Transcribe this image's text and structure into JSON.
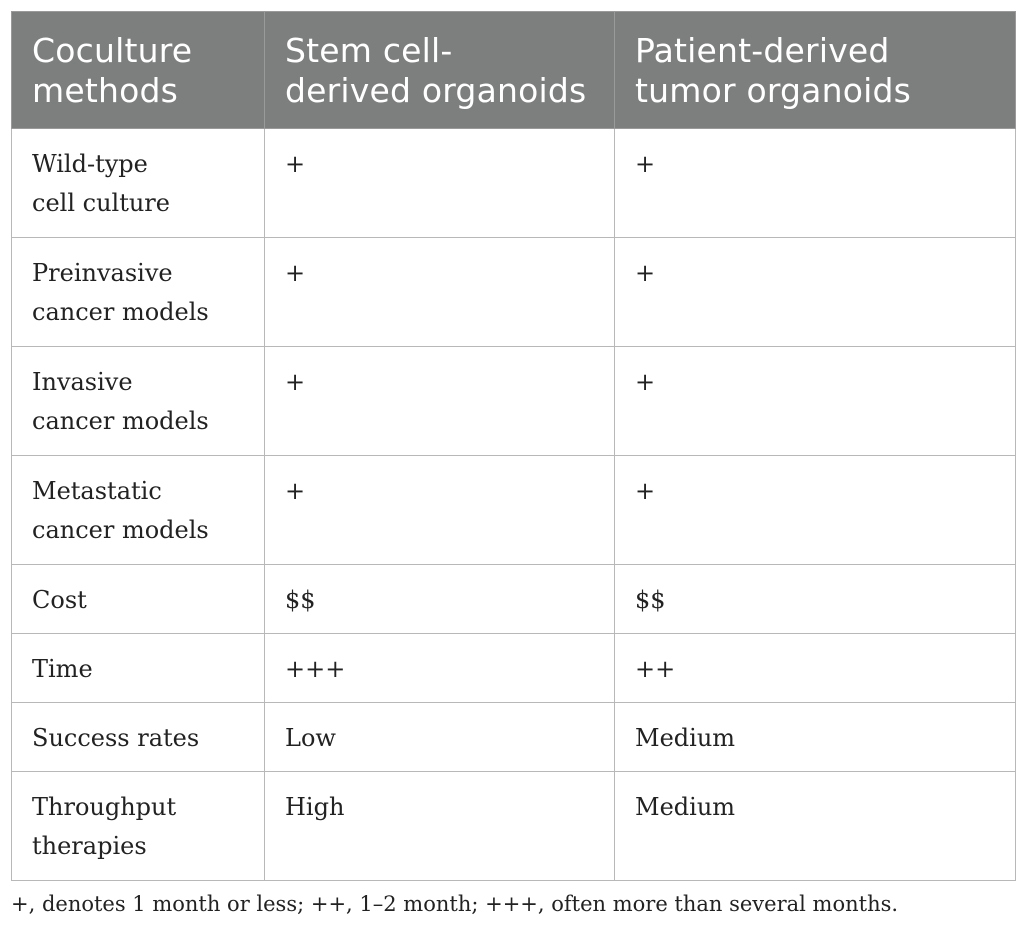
{
  "table": {
    "headers": [
      "Coculture\nmethods",
      "Stem cell-\nderived organoids",
      "Patient-derived\ntumor organoids"
    ],
    "rows": [
      {
        "method": "Wild-type\ncell culture",
        "stem": "+",
        "patient": "+"
      },
      {
        "method": "Preinvasive\ncancer models",
        "stem": "+",
        "patient": "+"
      },
      {
        "method": "Invasive\ncancer models",
        "stem": "+",
        "patient": "+"
      },
      {
        "method": "Metastatic\ncancer models",
        "stem": "+",
        "patient": "+"
      },
      {
        "method": "Cost",
        "stem": "$$",
        "patient": "$$"
      },
      {
        "method": "Time",
        "stem": "+++",
        "patient": "++"
      },
      {
        "method": "Success rates",
        "stem": "Low",
        "patient": "Medium"
      },
      {
        "method": "Throughput\ntherapies",
        "stem": "High",
        "patient": "Medium"
      }
    ]
  },
  "footnote": "+, denotes 1 month or less; ++, 1–2 month; +++, often more than several months."
}
